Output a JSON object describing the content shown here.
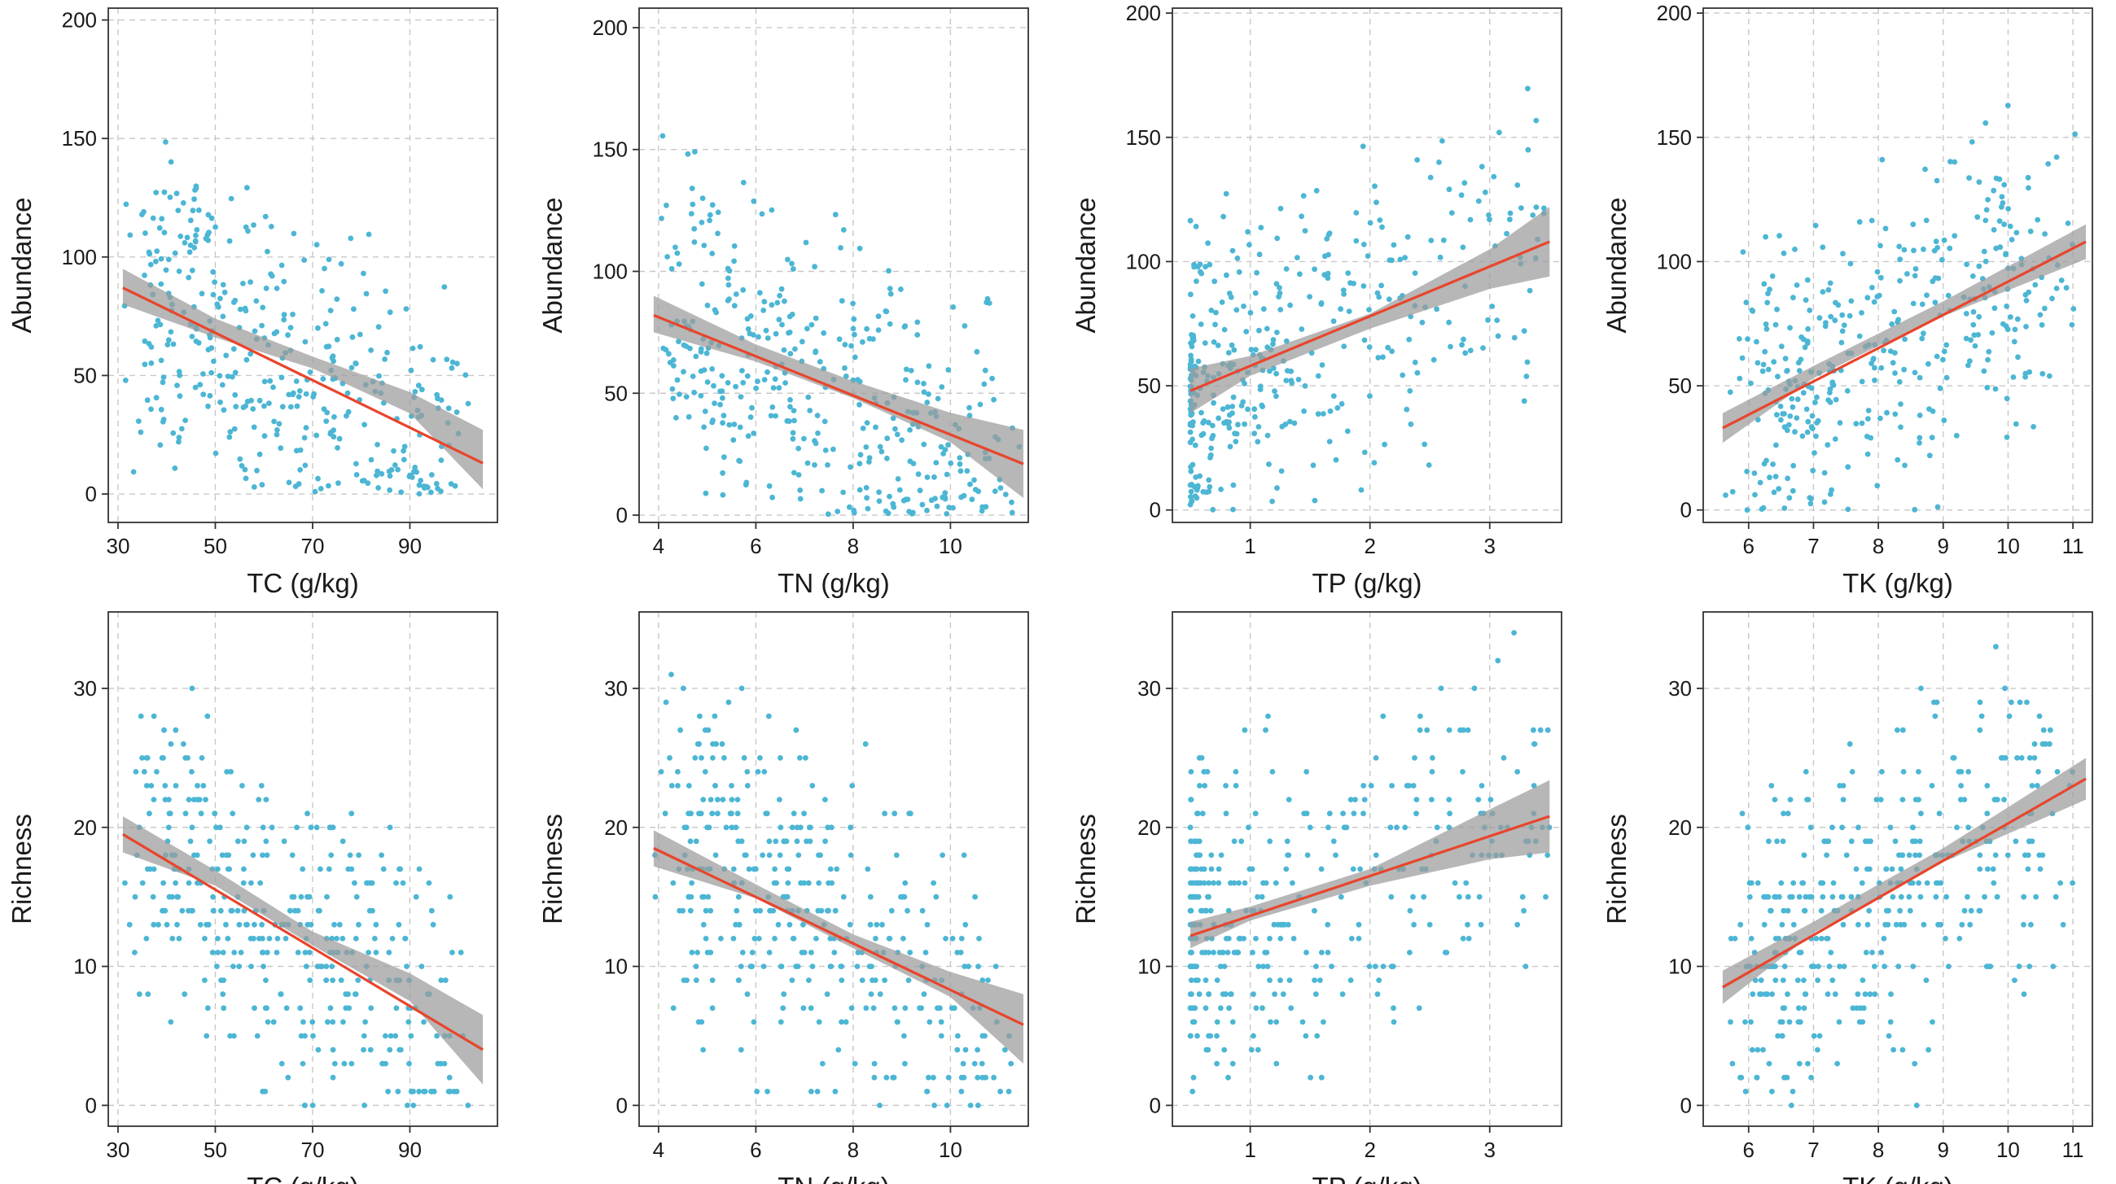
{
  "chart_data": [
    {
      "type": "scatter",
      "xlabel": "TC (g/kg)",
      "ylabel": "Abundance",
      "xlim": [
        28,
        108
      ],
      "ylim": [
        -12,
        205
      ],
      "xticks": [
        30,
        50,
        70,
        90
      ],
      "yticks": [
        0,
        50,
        100,
        150,
        200
      ],
      "trend": {
        "x": [
          31,
          105
        ],
        "y": [
          87,
          13
        ],
        "ci": [
          [
            31,
            80,
            95
          ],
          [
            50,
            66,
            74
          ],
          [
            70,
            53,
            58
          ],
          [
            90,
            34,
            43
          ],
          [
            105,
            2,
            27
          ]
        ]
      },
      "point_color": "#4cb6d4",
      "line_color": "#e8452c",
      "band_color": "#9b9b9b",
      "n_points": 380,
      "seed": 11
    },
    {
      "type": "scatter",
      "xlabel": "TN (g/kg)",
      "ylabel": "Abundance",
      "xlim": [
        3.6,
        11.6
      ],
      "ylim": [
        -3,
        208
      ],
      "xticks": [
        4,
        6,
        8,
        10
      ],
      "yticks": [
        0,
        50,
        100,
        150,
        200
      ],
      "trend": {
        "x": [
          3.9,
          11.5
        ],
        "y": [
          82,
          21
        ],
        "ci": [
          [
            3.9,
            75,
            90
          ],
          [
            6,
            63,
            70
          ],
          [
            8,
            48,
            55
          ],
          [
            10,
            30,
            42
          ],
          [
            11.5,
            7,
            35
          ]
        ]
      },
      "point_color": "#4cb6d4",
      "line_color": "#e8452c",
      "band_color": "#9b9b9b",
      "n_points": 380,
      "seed": 23
    },
    {
      "type": "scatter",
      "xlabel": "TP (g/kg)",
      "ylabel": "Abundance",
      "xlim": [
        0.35,
        3.6
      ],
      "ylim": [
        -5,
        202
      ],
      "xticks": [
        1,
        2,
        3
      ],
      "yticks": [
        0,
        50,
        100,
        150,
        200
      ],
      "trend": {
        "x": [
          0.5,
          3.5
        ],
        "y": [
          48,
          108
        ],
        "ci": [
          [
            0.5,
            39,
            57
          ],
          [
            1,
            54,
            62
          ],
          [
            2,
            73,
            79
          ],
          [
            3,
            89,
            105
          ],
          [
            3.5,
            94,
            122
          ]
        ]
      },
      "point_color": "#4cb6d4",
      "line_color": "#e8452c",
      "band_color": "#9b9b9b",
      "n_points": 380,
      "seed": 37
    },
    {
      "type": "scatter",
      "xlabel": "TK (g/kg)",
      "ylabel": "Abundance",
      "xlim": [
        5.3,
        11.3
      ],
      "ylim": [
        -5,
        202
      ],
      "xticks": [
        6,
        7,
        8,
        9,
        10,
        11
      ],
      "yticks": [
        0,
        50,
        100,
        150,
        200
      ],
      "trend": {
        "x": [
          5.6,
          11.2
        ],
        "y": [
          33,
          108
        ],
        "ci": [
          [
            5.6,
            27,
            39
          ],
          [
            7,
            53,
            58
          ],
          [
            8,
            66,
            71
          ],
          [
            9,
            78,
            84
          ],
          [
            11.2,
            101,
            115
          ]
        ]
      },
      "point_color": "#4cb6d4",
      "line_color": "#e8452c",
      "band_color": "#9b9b9b",
      "n_points": 380,
      "seed": 41
    },
    {
      "type": "scatter",
      "xlabel": "TC (g/kg)",
      "ylabel": "Richness",
      "xlim": [
        28,
        108
      ],
      "ylim": [
        -1.5,
        35.5
      ],
      "xticks": [
        30,
        50,
        70,
        90
      ],
      "yticks": [
        0,
        10,
        20,
        30
      ],
      "trend": {
        "x": [
          31,
          105
        ],
        "y": [
          19.5,
          4
        ],
        "ci": [
          [
            31,
            18.2,
            20.8
          ],
          [
            50,
            15.8,
            16.9
          ],
          [
            70,
            11.5,
            12.5
          ],
          [
            90,
            7.5,
            9.5
          ],
          [
            105,
            1.5,
            6.5
          ]
        ]
      },
      "point_color": "#4cb6d4",
      "line_color": "#e8452c",
      "band_color": "#9b9b9b",
      "n_points": 380,
      "seed": 53
    },
    {
      "type": "scatter",
      "xlabel": "TN (g/kg)",
      "ylabel": "Richness",
      "xlim": [
        3.6,
        11.6
      ],
      "ylim": [
        -1.5,
        35.5
      ],
      "xticks": [
        4,
        6,
        8,
        10
      ],
      "yticks": [
        0,
        10,
        20,
        30
      ],
      "trend": {
        "x": [
          3.9,
          11.5
        ],
        "y": [
          18.5,
          5.8
        ],
        "ci": [
          [
            3.9,
            17.2,
            19.8
          ],
          [
            6,
            14.9,
            15.9
          ],
          [
            8,
            11.3,
            12.3
          ],
          [
            10,
            7.8,
            9.6
          ],
          [
            11.5,
            3,
            8
          ]
        ]
      },
      "point_color": "#4cb6d4",
      "line_color": "#e8452c",
      "band_color": "#9b9b9b",
      "n_points": 380,
      "seed": 67
    },
    {
      "type": "scatter",
      "xlabel": "TP (g/kg)",
      "ylabel": "Richness",
      "xlim": [
        0.35,
        3.6
      ],
      "ylim": [
        -1.5,
        35.5
      ],
      "xticks": [
        1,
        2,
        3
      ],
      "yticks": [
        0,
        10,
        20,
        30
      ],
      "trend": {
        "x": [
          0.5,
          3.5
        ],
        "y": [
          12.2,
          20.8
        ],
        "ci": [
          [
            0.5,
            11.3,
            13.2
          ],
          [
            1,
            13.3,
            14.3
          ],
          [
            2,
            15.8,
            17
          ],
          [
            3,
            17.7,
            21.3
          ],
          [
            3.5,
            18.2,
            23.4
          ]
        ]
      },
      "point_color": "#4cb6d4",
      "line_color": "#e8452c",
      "band_color": "#9b9b9b",
      "n_points": 380,
      "seed": 79
    },
    {
      "type": "scatter",
      "xlabel": "TK (g/kg)",
      "ylabel": "Richness",
      "xlim": [
        5.3,
        11.3
      ],
      "ylim": [
        -1.5,
        35.5
      ],
      "xticks": [
        6,
        7,
        8,
        9,
        10,
        11
      ],
      "yticks": [
        0,
        10,
        20,
        30
      ],
      "trend": {
        "x": [
          5.6,
          11.2
        ],
        "y": [
          8.5,
          23.5
        ],
        "ci": [
          [
            5.6,
            7.3,
            9.7
          ],
          [
            7,
            12.4,
            13.2
          ],
          [
            8,
            14.9,
            15.9
          ],
          [
            9,
            17.5,
            18.5
          ],
          [
            11.2,
            22,
            25
          ]
        ]
      },
      "point_color": "#4cb6d4",
      "line_color": "#e8452c",
      "band_color": "#9b9b9b",
      "n_points": 380,
      "seed": 97
    }
  ]
}
